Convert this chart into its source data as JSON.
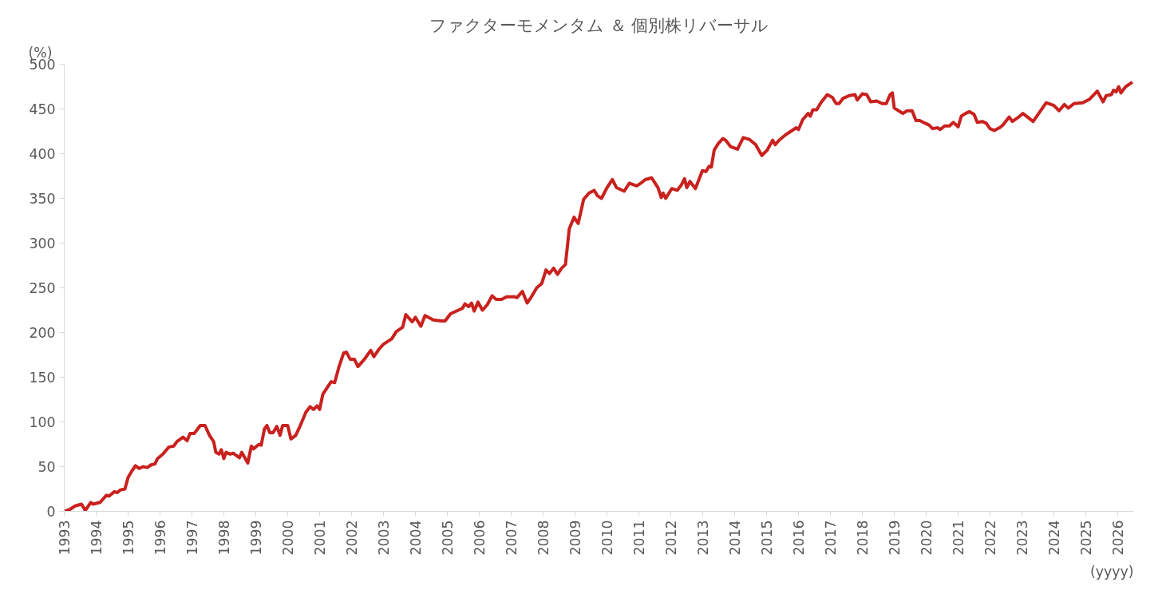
{
  "chart_data": {
    "type": "line",
    "title": "ファクターモメンタム ＆ 個別株リバーサル",
    "xlabel": "(yyyy)",
    "ylabel": "(%)",
    "xlim": [
      1993,
      2026.5
    ],
    "xticks": [
      1993,
      1994,
      1995,
      1996,
      1997,
      1998,
      1999,
      2000,
      2001,
      2002,
      2003,
      2004,
      2005,
      2006,
      2007,
      2008,
      2009,
      2010,
      2011,
      2012,
      2013,
      2014,
      2015,
      2016,
      2017,
      2018,
      2019,
      2020,
      2021,
      2022,
      2023,
      2024,
      2025,
      2026
    ],
    "ylim": [
      0,
      500
    ],
    "yticks": [
      0,
      50,
      100,
      150,
      200,
      250,
      300,
      350,
      400,
      450,
      500
    ],
    "grid": false,
    "marker": "none",
    "line_style": "solid",
    "x": [
      1993.0,
      1993.17,
      1993.34,
      1993.54,
      1993.66,
      1993.83,
      1993.9,
      1994.12,
      1994.32,
      1994.4,
      1994.57,
      1994.66,
      1994.76,
      1994.9,
      1995.0,
      1995.1,
      1995.23,
      1995.35,
      1995.47,
      1995.6,
      1995.72,
      1995.84,
      1995.92,
      1996.09,
      1996.28,
      1996.43,
      1996.53,
      1996.72,
      1996.85,
      1996.94,
      1997.07,
      1997.26,
      1997.41,
      1997.55,
      1997.68,
      1997.75,
      1997.85,
      1997.92,
      1998.0,
      1998.07,
      1998.2,
      1998.29,
      1998.49,
      1998.56,
      1998.75,
      1998.86,
      1998.93,
      1999.1,
      1999.17,
      1999.27,
      1999.35,
      1999.44,
      1999.54,
      1999.66,
      1999.76,
      1999.84,
      2000.0,
      2000.1,
      2000.25,
      2000.37,
      2000.57,
      2000.7,
      2000.81,
      2000.92,
      2001.0,
      2001.1,
      2001.23,
      2001.36,
      2001.47,
      2001.6,
      2001.75,
      2001.84,
      2001.96,
      2002.09,
      2002.2,
      2002.4,
      2002.6,
      2002.7,
      2002.85,
      2003.0,
      2003.26,
      2003.4,
      2003.6,
      2003.7,
      2003.9,
      2004.0,
      2004.17,
      2004.3,
      2004.56,
      2004.8,
      2004.93,
      2005.1,
      2005.47,
      2005.55,
      2005.67,
      2005.76,
      2005.84,
      2005.96,
      2006.1,
      2006.25,
      2006.4,
      2006.53,
      2006.7,
      2006.86,
      2007.1,
      2007.18,
      2007.35,
      2007.5,
      2007.6,
      2007.8,
      2007.96,
      2008.09,
      2008.2,
      2008.33,
      2008.45,
      2008.58,
      2008.7,
      2008.82,
      2008.97,
      2009.1,
      2009.27,
      2009.44,
      2009.6,
      2009.7,
      2009.83,
      2010.0,
      2010.17,
      2010.3,
      2010.54,
      2010.7,
      2010.93,
      2011.1,
      2011.2,
      2011.4,
      2011.6,
      2011.7,
      2011.76,
      2011.84,
      2012.03,
      2012.2,
      2012.33,
      2012.43,
      2012.5,
      2012.6,
      2012.77,
      2012.99,
      2013.1,
      2013.2,
      2013.27,
      2013.36,
      2013.48,
      2013.63,
      2013.72,
      2013.87,
      2014.09,
      2014.27,
      2014.46,
      2014.66,
      2014.85,
      2015.02,
      2015.19,
      2015.27,
      2015.39,
      2015.59,
      2015.76,
      2015.93,
      2016.0,
      2016.13,
      2016.3,
      2016.37,
      2016.45,
      2016.57,
      2016.7,
      2016.9,
      2017.06,
      2017.18,
      2017.27,
      2017.4,
      2017.6,
      2017.77,
      2017.84,
      2018.0,
      2018.14,
      2018.26,
      2018.45,
      2018.62,
      2018.75,
      2018.87,
      2018.94,
      2019.0,
      2019.14,
      2019.27,
      2019.4,
      2019.56,
      2019.68,
      2019.8,
      2019.97,
      2020.09,
      2020.2,
      2020.36,
      2020.44,
      2020.58,
      2020.73,
      2020.85,
      2021.0,
      2021.1,
      2021.23,
      2021.35,
      2021.5,
      2021.6,
      2021.76,
      2021.88,
      2022.0,
      2022.13,
      2022.3,
      2022.4,
      2022.6,
      2022.7,
      2022.86,
      2023.03,
      2023.35,
      2023.76,
      2024.0,
      2024.16,
      2024.33,
      2024.45,
      2024.63,
      2024.9,
      2025.12,
      2025.36,
      2025.54,
      2025.64,
      2025.8,
      2025.87,
      2025.95,
      2026.03,
      2026.1,
      2026.25,
      2026.46
    ],
    "series": [
      {
        "color": "#c9211e",
        "values": [
          0,
          2,
          6,
          8,
          1,
          10,
          8,
          10,
          18,
          17,
          22,
          21,
          24,
          25,
          38,
          44,
          51,
          48,
          50,
          49,
          52,
          53,
          59,
          64,
          72,
          73,
          78,
          83,
          79,
          87,
          87,
          96,
          96,
          85,
          78,
          66,
          64,
          69,
          59,
          66,
          64,
          65,
          60,
          66,
          54,
          73,
          70,
          75,
          74,
          92,
          96,
          88,
          88,
          95,
          85,
          96,
          96,
          81,
          85,
          94,
          111,
          117,
          114,
          118,
          114,
          131,
          138,
          145,
          144,
          161,
          177,
          178,
          170,
          170,
          162,
          170,
          180,
          173,
          181,
          187,
          193,
          201,
          206,
          220,
          212,
          217,
          207,
          219,
          214,
          213,
          213,
          221,
          227,
          232,
          229,
          233,
          224,
          234,
          225,
          231,
          241,
          237,
          237,
          240,
          240,
          239,
          246,
          233,
          238,
          250,
          255,
          270,
          266,
          272,
          265,
          272,
          276,
          316,
          329,
          322,
          349,
          356,
          359,
          353,
          350,
          362,
          371,
          362,
          358,
          367,
          364,
          368,
          371,
          373,
          362,
          351,
          356,
          350,
          361,
          359,
          365,
          372,
          362,
          369,
          361,
          381,
          380,
          386,
          385,
          404,
          411,
          417,
          415,
          408,
          405,
          418,
          416,
          410,
          398,
          404,
          415,
          410,
          415,
          421,
          425,
          429,
          427,
          438,
          445,
          442,
          449,
          449,
          457,
          466,
          463,
          456,
          456,
          462,
          465,
          466,
          460,
          467,
          466,
          458,
          459,
          456,
          456,
          466,
          468,
          451,
          448,
          445,
          448,
          448,
          437,
          437,
          434,
          432,
          428,
          429,
          427,
          431,
          431,
          435,
          430,
          442,
          445,
          447,
          444,
          435,
          436,
          434,
          428,
          426,
          429,
          432,
          441,
          436,
          440,
          445,
          436,
          457,
          454,
          448,
          455,
          451,
          456,
          457,
          461,
          470,
          458,
          465,
          466,
          471,
          469,
          475,
          468,
          475,
          480
        ]
      }
    ]
  }
}
